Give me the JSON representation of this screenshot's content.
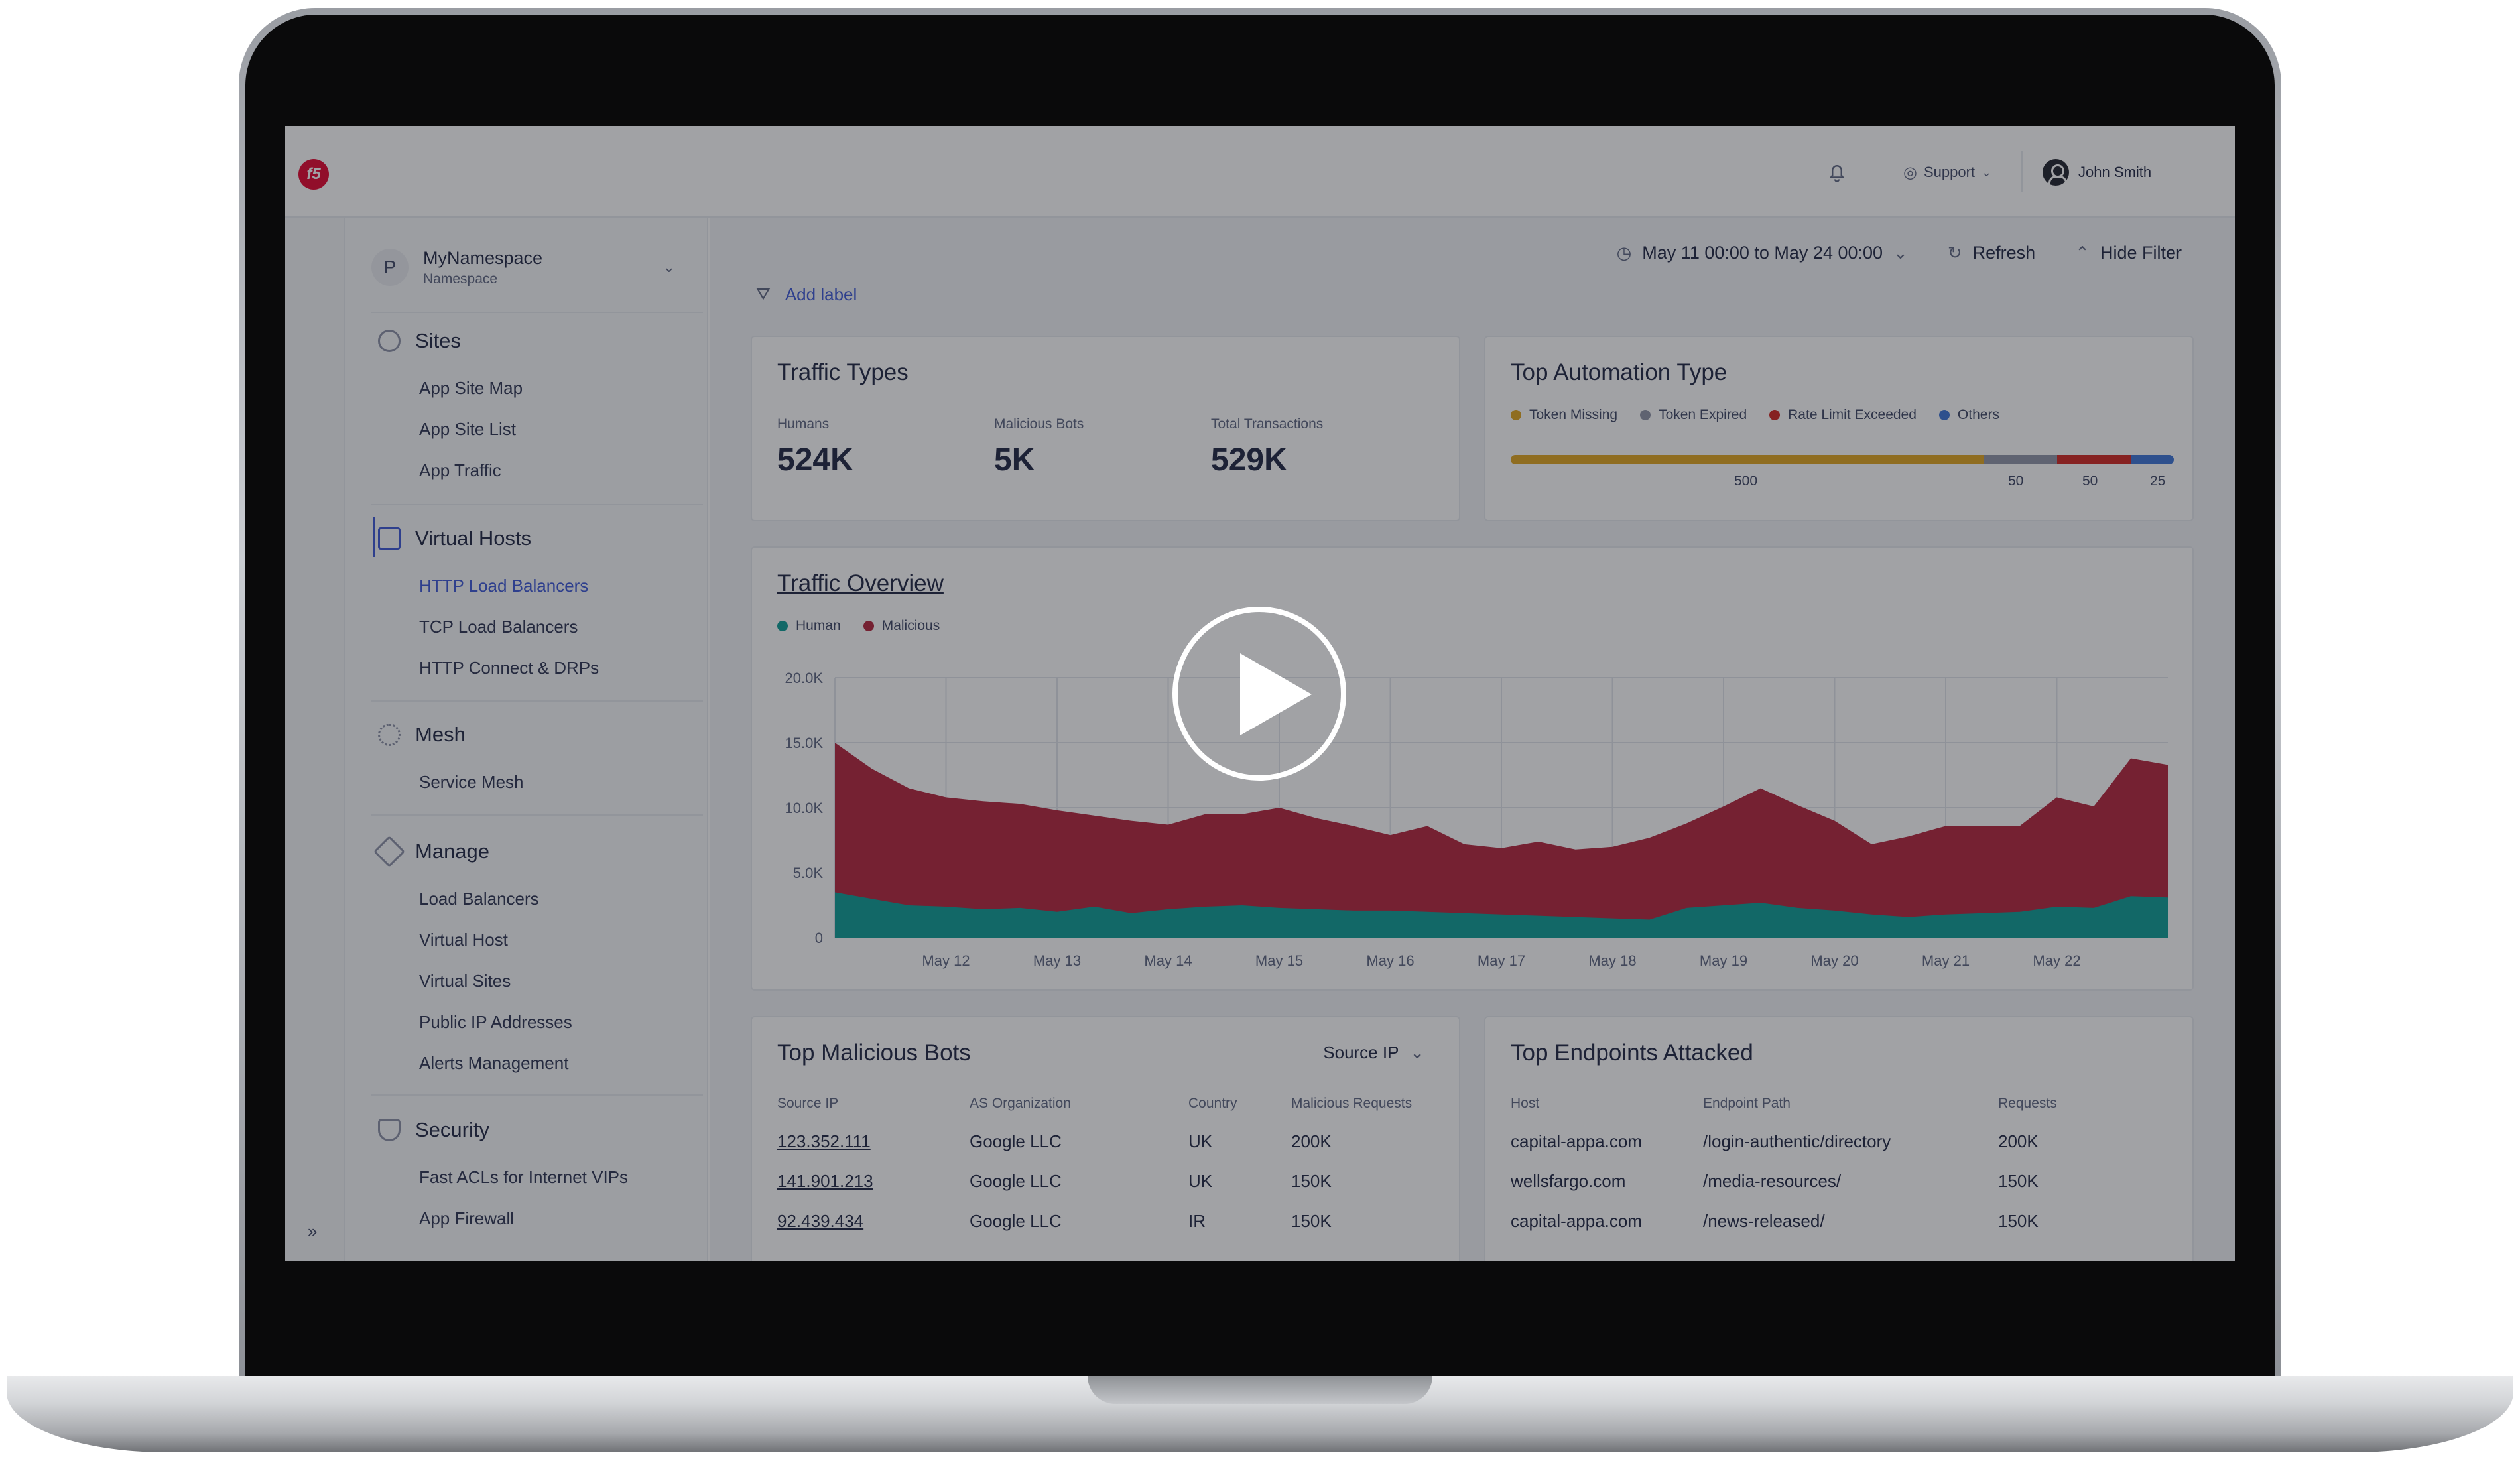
{
  "topbar": {
    "support_label": "Support",
    "user_name": "John Smith"
  },
  "sidebar": {
    "namespace": {
      "badge": "P",
      "name": "MyNamespace",
      "sub": "Namespace"
    },
    "sections": [
      {
        "title": "Sites",
        "items": [
          "App Site Map",
          "App Site List",
          "App Traffic"
        ]
      },
      {
        "title": "Virtual Hosts",
        "items": [
          "HTTP Load Balancers",
          "TCP Load Balancers",
          "HTTP Connect & DRPs"
        ]
      },
      {
        "title": "Mesh",
        "items": [
          "Service Mesh"
        ]
      },
      {
        "title": "Manage",
        "items": [
          "Load Balancers",
          "Virtual Host",
          "Virtual Sites",
          "Public IP Addresses",
          "Alerts Management"
        ]
      },
      {
        "title": "Security",
        "items": [
          "Fast ACLs for Internet VIPs",
          "App Firewall"
        ]
      }
    ],
    "active_item": "HTTP Load Balancers",
    "rail_expand": "»"
  },
  "filters": {
    "date_range": "May 11 00:00 to May 24 00:00",
    "refresh": "Refresh",
    "hide_filter": "Hide Filter",
    "add_label": "Add label"
  },
  "traffic_types": {
    "title": "Traffic Types",
    "stats": [
      {
        "label": "Humans",
        "value": "524K"
      },
      {
        "label": "Malicious Bots",
        "value": "5K"
      },
      {
        "label": "Total Transactions",
        "value": "529K"
      }
    ]
  },
  "automation": {
    "title": "Top Automation Type",
    "legend": [
      {
        "name": "Token Missing",
        "color": "#e0a41c"
      },
      {
        "name": "Token Expired",
        "color": "#8d93a6"
      },
      {
        "name": "Rate Limit Exceeded",
        "color": "#d0231e"
      },
      {
        "name": "Others",
        "color": "#3a72d6"
      }
    ],
    "values": [
      "500",
      "50",
      "50",
      "25"
    ]
  },
  "chart_data": {
    "type": "area",
    "title": "Traffic Overview",
    "series": [
      {
        "name": "Human",
        "color": "#0a9c94",
        "values": [
          3500,
          3000,
          2500,
          2400,
          2200,
          2300,
          2000,
          2400,
          1900,
          2200,
          2400,
          2500,
          2300,
          2200,
          2100,
          2100,
          2000,
          1900,
          1800,
          1700,
          1600,
          1500,
          1400,
          2300,
          2500,
          2700,
          2300,
          2100,
          1800,
          1600,
          1800,
          1900,
          2000,
          2400,
          2300,
          3200,
          3100
        ]
      },
      {
        "name": "Malicious",
        "color": "#b3213a",
        "values": [
          15000,
          13000,
          11500,
          10800,
          10500,
          10300,
          9800,
          9400,
          9000,
          8700,
          9500,
          9500,
          10000,
          9200,
          8600,
          7900,
          8600,
          7200,
          6900,
          7400,
          6800,
          7000,
          7700,
          8800,
          10100,
          11500,
          10200,
          9000,
          7200,
          7800,
          8600,
          8600,
          8600,
          10800,
          10100,
          13800,
          13300
        ]
      }
    ],
    "x_ticks": [
      "May 12",
      "May 13",
      "May 14",
      "May 15",
      "May 16",
      "May 17",
      "May 18",
      "May 19",
      "May 20",
      "May 21",
      "May 22"
    ],
    "y_ticks": [
      "20.0K",
      "15.0K",
      "10.0K",
      "5.0K",
      "0"
    ],
    "ylim": [
      0,
      20000
    ],
    "grid": true,
    "legend_position": "top-left"
  },
  "malicious_bots": {
    "title": "Top Malicious Bots",
    "dropdown": "Source IP",
    "headers": [
      "Source IP",
      "AS Organization",
      "Country",
      "Malicious Requests"
    ],
    "rows": [
      [
        "123.352.111",
        "Google LLC",
        "UK",
        "200K"
      ],
      [
        "141.901.213",
        "Google LLC",
        "UK",
        "150K"
      ],
      [
        "92.439.434",
        "Google LLC",
        "IR",
        "150K"
      ]
    ]
  },
  "endpoints": {
    "title": "Top Endpoints Attacked",
    "headers": [
      "Host",
      "Endpoint Path",
      "Requests"
    ],
    "rows": [
      [
        "capital-appa.com",
        "/login-authentic/directory",
        "200K"
      ],
      [
        "wellsfargo.com",
        "/media-resources/",
        "150K"
      ],
      [
        "capital-appa.com",
        "/news-released/",
        "150K"
      ]
    ]
  }
}
